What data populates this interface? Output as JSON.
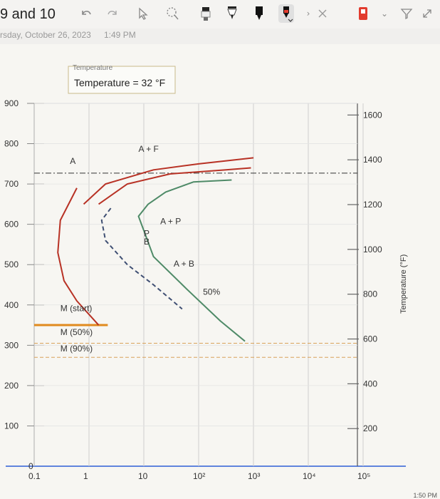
{
  "header": {
    "title": "9 and 10",
    "date": "rsday, October 26, 2023",
    "time": "1:49 PM",
    "toolbar_icons": [
      "undo-icon",
      "redo-icon",
      "pointer-icon",
      "lasso-icon",
      "highlighter-icon",
      "pen-icon",
      "marker-icon",
      "red-pen-icon",
      "chevron-right-icon",
      "close-icon",
      "red-tag-icon",
      "chevron-down-icon",
      "filter-icon",
      "expand-icon"
    ]
  },
  "chart_data": {
    "type": "line",
    "title": "Temperature = 32 °F",
    "title_clipped_above": "Temperature",
    "x_axis": {
      "scale": "log",
      "tick_labels": [
        "0.1",
        "1",
        "10",
        "10²",
        "10³",
        "10⁴",
        "10⁵"
      ],
      "ticks": [
        0.1,
        1,
        10,
        100,
        1000,
        10000,
        100000
      ]
    },
    "y_left": {
      "ticks": [
        0,
        100,
        200,
        300,
        400,
        500,
        600,
        700,
        800,
        900
      ],
      "tick_labels": [
        "0",
        "100",
        "200",
        "300",
        "400",
        "500",
        "600",
        "700",
        "800",
        "900"
      ],
      "range": [
        0,
        900
      ]
    },
    "y_right": {
      "label": "Temperature (°F)",
      "ticks": [
        200,
        400,
        600,
        800,
        1000,
        1200,
        1400,
        1600
      ],
      "tick_labels": [
        "200",
        "400",
        "600",
        "800",
        "1000",
        "1200",
        "1400",
        "1600"
      ]
    },
    "region_labels": [
      "A",
      "A + F",
      "A + P",
      "P",
      "B",
      "A + B",
      "50%",
      "M (start)",
      "M (50%)",
      "M (90%)"
    ],
    "reference_lines": {
      "eutectoid_temp": 727,
      "ms": 350,
      "m50": 305,
      "m90": 270
    },
    "series": [
      {
        "name": "",
        "color": "#b83225",
        "points": [
          [
            0.6,
            690
          ],
          [
            0.3,
            610
          ],
          [
            0.27,
            530
          ],
          [
            0.35,
            460
          ],
          [
            0.6,
            410
          ],
          [
            1.5,
            350
          ]
        ]
      },
      {
        "name": "",
        "color": "#b83225",
        "points": [
          [
            0.8,
            650
          ],
          [
            2,
            700
          ],
          [
            15,
            735
          ],
          [
            100,
            750
          ],
          [
            1000,
            765
          ]
        ]
      },
      {
        "name": "",
        "color": "#b83225",
        "points": [
          [
            1.5,
            650
          ],
          [
            5,
            700
          ],
          [
            30,
            725
          ],
          [
            300,
            735
          ],
          [
            900,
            740
          ]
        ]
      },
      {
        "name": "",
        "color": "#4e8a67",
        "points": [
          [
            400,
            710
          ],
          [
            80,
            705
          ],
          [
            25,
            680
          ],
          [
            12,
            650
          ],
          [
            8,
            620
          ],
          [
            15,
            520
          ],
          [
            60,
            440
          ],
          [
            250,
            360
          ],
          [
            700,
            310
          ]
        ]
      },
      {
        "name": "",
        "color": "#3f4f73",
        "points": [
          [
            2.5,
            640
          ],
          [
            1.7,
            610
          ],
          [
            2,
            560
          ],
          [
            5,
            500
          ],
          [
            15,
            450
          ],
          [
            50,
            390
          ]
        ]
      }
    ]
  },
  "footer": {
    "text": "1:50 PM"
  }
}
